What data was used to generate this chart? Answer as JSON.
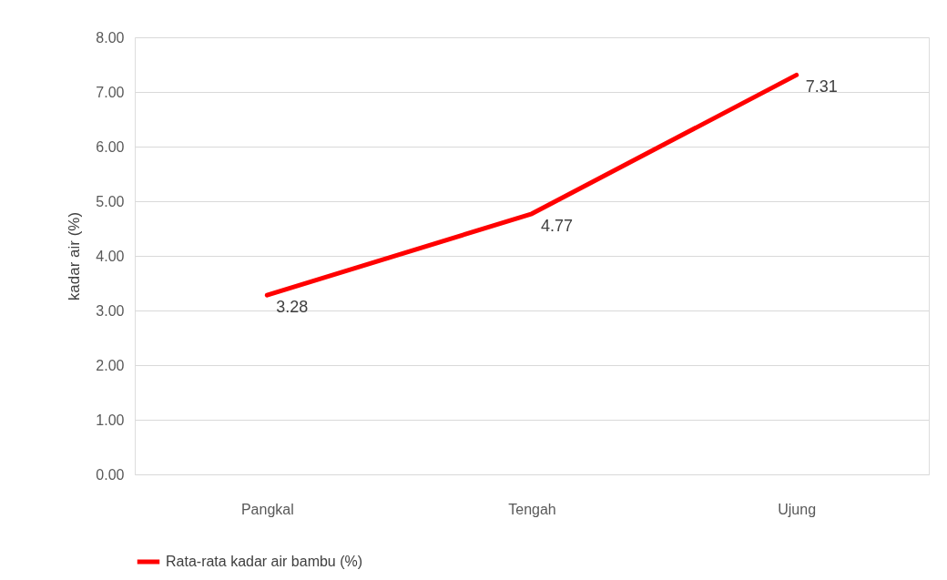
{
  "chart_data": {
    "type": "line",
    "ylabel": "kadar air (%)",
    "categories": [
      "Pangkal",
      "Tengah",
      "Ujung"
    ],
    "series": [
      {
        "name": "Rata-rata kadar air bambu (%)",
        "color": "#ff0000",
        "values": [
          3.28,
          4.77,
          7.31
        ]
      }
    ],
    "ylim": [
      0,
      8
    ],
    "yticks": [
      {
        "value": 0,
        "label": "0.00"
      },
      {
        "value": 1,
        "label": "1.00"
      },
      {
        "value": 2,
        "label": "2.00"
      },
      {
        "value": 3,
        "label": "3.00"
      },
      {
        "value": 4,
        "label": "4.00"
      },
      {
        "value": 5,
        "label": "5.00"
      },
      {
        "value": 6,
        "label": "6.00"
      },
      {
        "value": 7,
        "label": "7.00"
      },
      {
        "value": 8,
        "label": "8.00"
      }
    ],
    "grid": "y",
    "legend": "bottom",
    "data_labels": true,
    "marker": "none",
    "line_style": "solid"
  }
}
